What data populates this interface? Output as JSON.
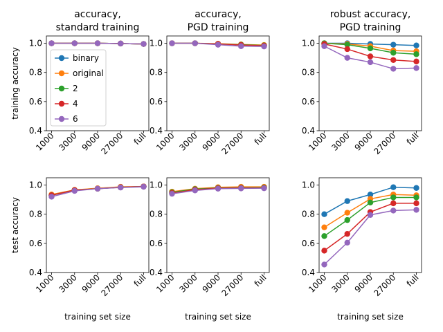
{
  "chart_data": {
    "type": "line",
    "categories": [
      "1000",
      "3000",
      "9000",
      "27000",
      "full"
    ],
    "ylim": [
      0.4,
      1.05
    ],
    "yticks": [
      "0.4",
      "0.6",
      "0.8",
      "1.0"
    ],
    "row_ylabels": [
      "training accuracy",
      "test accuracy"
    ],
    "xlabel": "training set size",
    "legend_title": "",
    "series_meta": [
      {
        "name": "binary",
        "color": "#1f77b4"
      },
      {
        "name": "original",
        "color": "#ff7f0e"
      },
      {
        "name": "2",
        "color": "#2ca02c"
      },
      {
        "name": "4",
        "color": "#d62728"
      },
      {
        "name": "6",
        "color": "#9467bd"
      }
    ],
    "panels": [
      {
        "title_line1": "accuracy,",
        "title_line2": "standard training",
        "series": [
          {
            "name": "binary",
            "values": [
              1.0,
              1.0,
              1.0,
              0.998,
              0.995
            ]
          },
          {
            "name": "original",
            "values": [
              1.0,
              1.0,
              1.0,
              0.998,
              0.995
            ]
          },
          {
            "name": "2",
            "values": [
              1.0,
              1.0,
              1.0,
              0.998,
              0.995
            ]
          },
          {
            "name": "4",
            "values": [
              1.0,
              1.0,
              1.0,
              0.998,
              0.995
            ]
          },
          {
            "name": "6",
            "values": [
              1.0,
              1.0,
              1.0,
              0.998,
              0.995
            ]
          }
        ]
      },
      {
        "title_line1": "accuracy,",
        "title_line2": "PGD training",
        "series": [
          {
            "name": "binary",
            "values": [
              1.0,
              1.0,
              0.995,
              0.99,
              0.985
            ]
          },
          {
            "name": "original",
            "values": [
              1.0,
              1.0,
              0.997,
              0.992,
              0.988
            ]
          },
          {
            "name": "2",
            "values": [
              1.0,
              1.0,
              0.995,
              0.99,
              0.985
            ]
          },
          {
            "name": "4",
            "values": [
              1.0,
              1.0,
              0.995,
              0.988,
              0.983
            ]
          },
          {
            "name": "6",
            "values": [
              1.0,
              1.0,
              0.99,
              0.98,
              0.978
            ]
          }
        ]
      },
      {
        "title_line1": "robust accuracy,",
        "title_line2": "PGD training",
        "series": [
          {
            "name": "binary",
            "values": [
              1.0,
              1.0,
              0.995,
              0.99,
              0.985
            ]
          },
          {
            "name": "original",
            "values": [
              1.0,
              0.995,
              0.98,
              0.95,
              0.945
            ]
          },
          {
            "name": "2",
            "values": [
              1.0,
              0.99,
              0.965,
              0.935,
              0.925
            ]
          },
          {
            "name": "4",
            "values": [
              0.995,
              0.96,
              0.91,
              0.885,
              0.875
            ]
          },
          {
            "name": "6",
            "values": [
              0.98,
              0.9,
              0.87,
              0.825,
              0.83
            ]
          }
        ]
      },
      {
        "title_line1": "",
        "title_line2": "",
        "series": [
          {
            "name": "binary",
            "values": [
              0.93,
              0.965,
              0.975,
              0.985,
              0.99
            ]
          },
          {
            "name": "original",
            "values": [
              0.935,
              0.967,
              0.978,
              0.988,
              0.99
            ]
          },
          {
            "name": "2",
            "values": [
              0.93,
              0.965,
              0.975,
              0.985,
              0.99
            ]
          },
          {
            "name": "4",
            "values": [
              0.93,
              0.965,
              0.975,
              0.985,
              0.99
            ]
          },
          {
            "name": "6",
            "values": [
              0.92,
              0.96,
              0.975,
              0.983,
              0.988
            ]
          }
        ]
      },
      {
        "title_line1": "",
        "title_line2": "",
        "series": [
          {
            "name": "binary",
            "values": [
              0.945,
              0.97,
              0.978,
              0.98,
              0.98
            ]
          },
          {
            "name": "original",
            "values": [
              0.955,
              0.975,
              0.985,
              0.988,
              0.988
            ]
          },
          {
            "name": "2",
            "values": [
              0.95,
              0.972,
              0.98,
              0.982,
              0.983
            ]
          },
          {
            "name": "4",
            "values": [
              0.945,
              0.968,
              0.978,
              0.98,
              0.98
            ]
          },
          {
            "name": "6",
            "values": [
              0.94,
              0.963,
              0.975,
              0.977,
              0.978
            ]
          }
        ]
      },
      {
        "title_line1": "",
        "title_line2": "",
        "series": [
          {
            "name": "binary",
            "values": [
              0.8,
              0.89,
              0.935,
              0.985,
              0.98
            ]
          },
          {
            "name": "original",
            "values": [
              0.71,
              0.81,
              0.905,
              0.935,
              0.93
            ]
          },
          {
            "name": "2",
            "values": [
              0.65,
              0.76,
              0.88,
              0.915,
              0.915
            ]
          },
          {
            "name": "4",
            "values": [
              0.55,
              0.665,
              0.815,
              0.875,
              0.875
            ]
          },
          {
            "name": "6",
            "values": [
              0.455,
              0.605,
              0.795,
              0.825,
              0.83
            ]
          }
        ]
      }
    ]
  }
}
